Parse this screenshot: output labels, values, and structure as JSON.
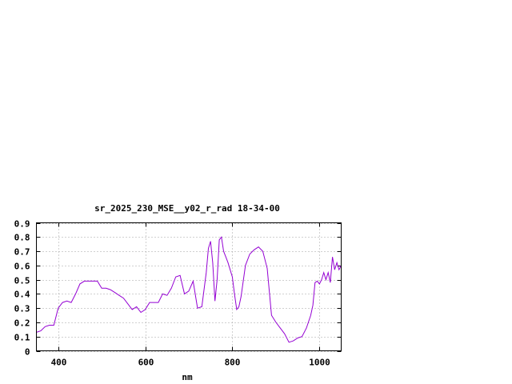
{
  "chart_data": {
    "type": "line",
    "title": "sr_2025_230_MSE__y02_r_rad 18-34-00",
    "xlabel": "nm",
    "ylabel": "",
    "xlim": [
      350,
      1050
    ],
    "ylim": [
      0,
      0.9
    ],
    "xticks": [
      400,
      600,
      800,
      1000
    ],
    "xtick_labels": [
      "400",
      "600",
      "800",
      "1000"
    ],
    "yticks": [
      0,
      0.1,
      0.2,
      0.3,
      0.4,
      0.5,
      0.6,
      0.7,
      0.8,
      0.9
    ],
    "ytick_labels": [
      "0",
      "0.1",
      "0.2",
      "0.3",
      "0.4",
      "0.5",
      "0.6",
      "0.7",
      "0.8",
      "0.9"
    ],
    "grid": true,
    "legend": "none",
    "color": "#9400d3",
    "series": [
      {
        "x": [
          350,
          360,
          370,
          380,
          390,
          400,
          410,
          420,
          430,
          440,
          450,
          460,
          470,
          480,
          490,
          500,
          510,
          520,
          530,
          540,
          550,
          560,
          570,
          580,
          590,
          600,
          610,
          620,
          630,
          640,
          650,
          660,
          670,
          680,
          690,
          700,
          710,
          720,
          730,
          740,
          745,
          750,
          755,
          760,
          765,
          770,
          775,
          780,
          785,
          790,
          800,
          805,
          810,
          815,
          820,
          830,
          840,
          850,
          860,
          870,
          880,
          890,
          900,
          910,
          920,
          930,
          940,
          950,
          960,
          970,
          980,
          985,
          990,
          995,
          1000,
          1005,
          1010,
          1015,
          1020,
          1025,
          1030,
          1035,
          1040,
          1045,
          1050
        ],
        "y": [
          0.13,
          0.14,
          0.17,
          0.18,
          0.18,
          0.3,
          0.34,
          0.35,
          0.34,
          0.4,
          0.47,
          0.49,
          0.49,
          0.49,
          0.49,
          0.44,
          0.44,
          0.43,
          0.41,
          0.39,
          0.37,
          0.33,
          0.29,
          0.31,
          0.27,
          0.29,
          0.34,
          0.34,
          0.34,
          0.4,
          0.39,
          0.44,
          0.52,
          0.53,
          0.4,
          0.42,
          0.49,
          0.3,
          0.31,
          0.55,
          0.72,
          0.77,
          0.62,
          0.35,
          0.5,
          0.78,
          0.8,
          0.7,
          0.66,
          0.62,
          0.52,
          0.4,
          0.29,
          0.31,
          0.38,
          0.6,
          0.68,
          0.71,
          0.73,
          0.7,
          0.58,
          0.25,
          0.2,
          0.16,
          0.12,
          0.06,
          0.07,
          0.09,
          0.1,
          0.16,
          0.25,
          0.32,
          0.48,
          0.49,
          0.47,
          0.5,
          0.55,
          0.5,
          0.55,
          0.48,
          0.66,
          0.57,
          0.62,
          0.57,
          0.6
        ]
      }
    ]
  }
}
